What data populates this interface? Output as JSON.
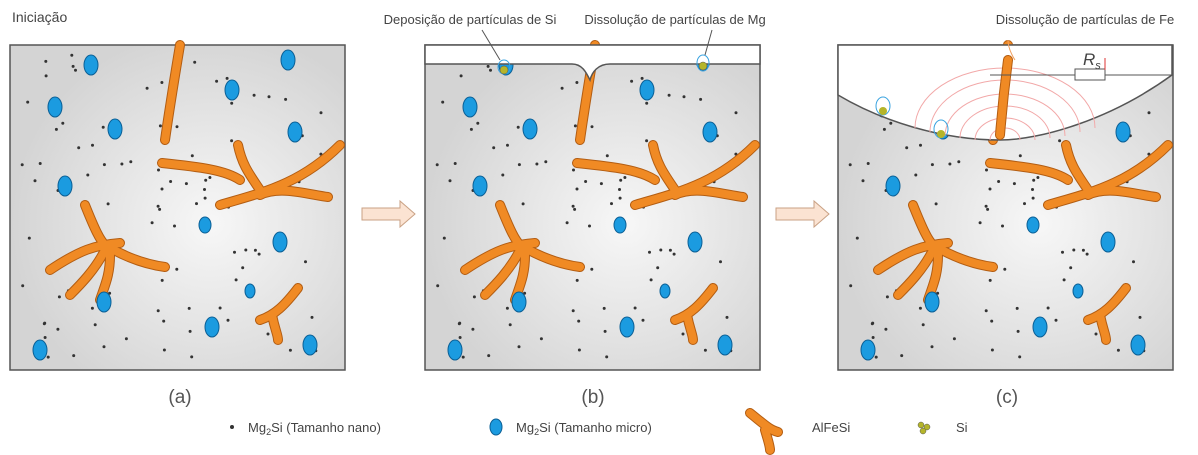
{
  "labels": {
    "initiation": "Iniciação",
    "si_deposition": "Deposição de partículas de Si",
    "mg_dissolution": "Dissolução de partículas de Mg",
    "fe_dissolution": "Dissolução de partículas de Fe",
    "resistance": {
      "symbol": "R",
      "subscript": "s"
    }
  },
  "panels": [
    "(a)",
    "(b)",
    "(c)"
  ],
  "legend": [
    {
      "main": "Mg",
      "subscript": "2",
      "rest": "Si (Tamanho nano)"
    },
    {
      "main": "Mg",
      "subscript": "2",
      "rest": "Si (Tamanho micro)"
    },
    {
      "main": "AlFeSi"
    },
    {
      "main": "Si"
    }
  ]
}
